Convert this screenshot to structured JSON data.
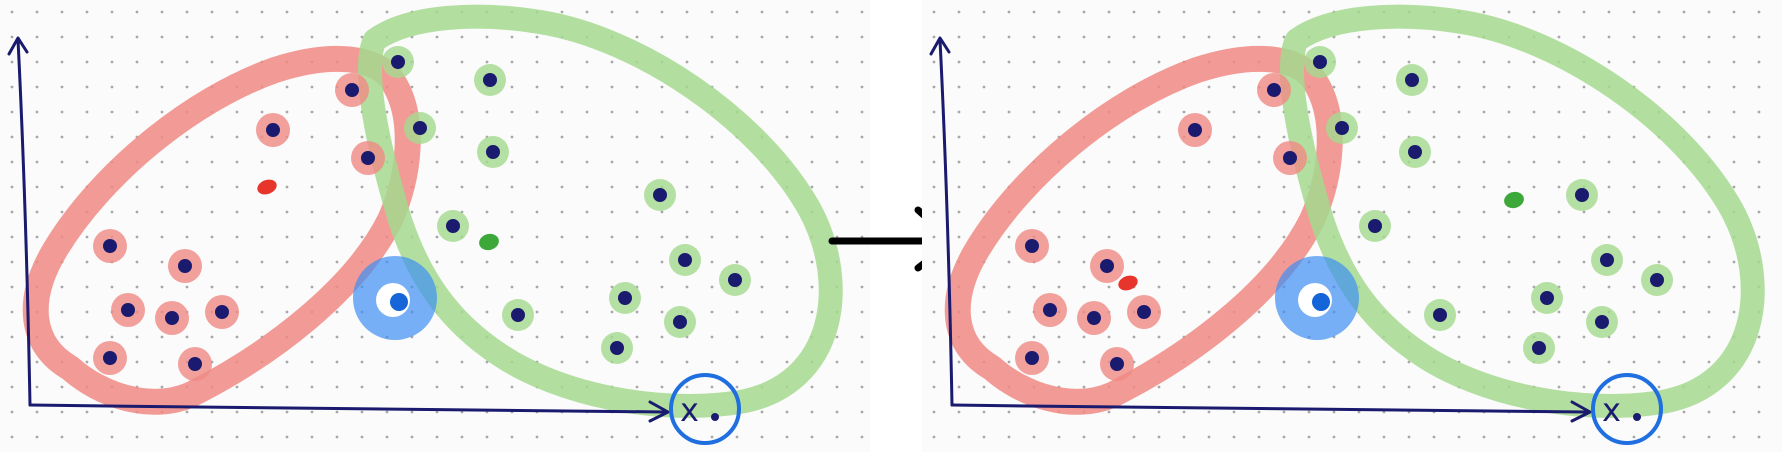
{
  "panels": [
    {
      "id": "before",
      "x_label": "x",
      "red_centroid_color": "#e8352b",
      "green_centroid_color": "#3da83a"
    },
    {
      "id": "after",
      "x_label": "x",
      "red_centroid_color": "#e8352b",
      "green_centroid_color": "#3da83a"
    }
  ],
  "colors": {
    "red_region": "#f08a84",
    "green_region": "#a4d98f",
    "blue_region": "#3d8ef2",
    "point": "#1a1a6e",
    "axis": "#1a1a6e",
    "arrow": "#000000",
    "x_circle": "#1f6fe0",
    "grid_dot": "#a8a8a8"
  }
}
